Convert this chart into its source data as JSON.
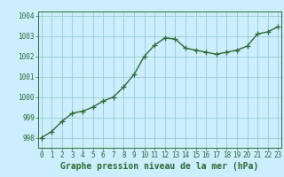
{
  "x": [
    0,
    1,
    2,
    3,
    4,
    5,
    6,
    7,
    8,
    9,
    10,
    11,
    12,
    13,
    14,
    15,
    16,
    17,
    18,
    19,
    20,
    21,
    22,
    23
  ],
  "y": [
    998.0,
    998.3,
    998.8,
    999.2,
    999.3,
    999.5,
    999.8,
    1000.0,
    1000.5,
    1001.1,
    1002.0,
    1002.55,
    1002.9,
    1002.85,
    1002.4,
    1002.3,
    1002.2,
    1002.1,
    1002.2,
    1002.3,
    1002.5,
    1003.1,
    1003.2,
    1003.45
  ],
  "bg_color": "#cceeff",
  "grid_color": "#99cccc",
  "line_color": "#2d6a2d",
  "marker_color": "#2d6a2d",
  "xlabel": "Graphe pression niveau de la mer (hPa)",
  "xlabel_color": "#2d6a2d",
  "tick_color": "#2d6a2d",
  "ylim": [
    997.5,
    1004.2
  ],
  "yticks": [
    998,
    999,
    1000,
    1001,
    1002,
    1003,
    1004
  ],
  "xticks": [
    0,
    1,
    2,
    3,
    4,
    5,
    6,
    7,
    8,
    9,
    10,
    11,
    12,
    13,
    14,
    15,
    16,
    17,
    18,
    19,
    20,
    21,
    22,
    23
  ],
  "spine_color": "#2d6a2d",
  "marker_size": 4,
  "line_width": 1.0,
  "tick_fontsize": 5.5,
  "xlabel_fontsize": 7.0
}
